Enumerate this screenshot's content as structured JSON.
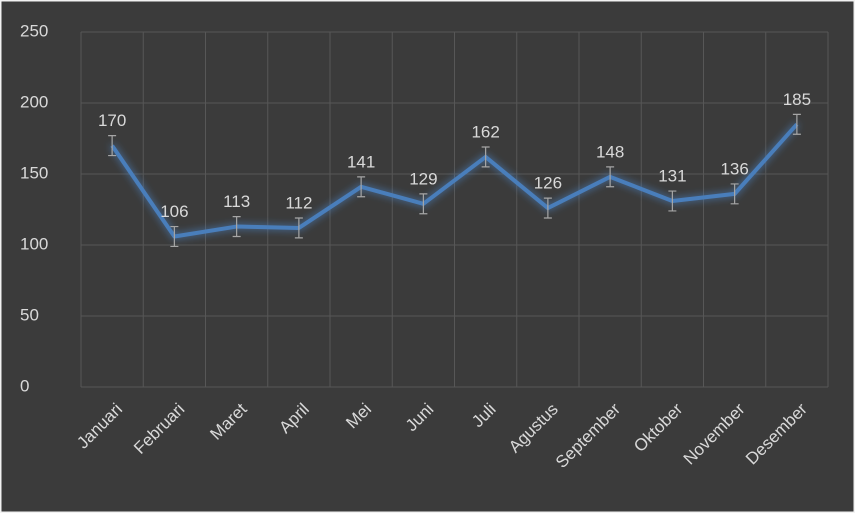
{
  "chart_data": {
    "type": "line",
    "categories": [
      "Januari",
      "Februari",
      "Maret",
      "April",
      "Mei",
      "Juni",
      "Juli",
      "Agustus",
      "September",
      "Oktober",
      "November",
      "Desember"
    ],
    "series": [
      {
        "color": "#4a7ebb",
        "values": [
          170,
          106,
          113,
          112,
          141,
          129,
          162,
          126,
          148,
          131,
          136,
          185
        ],
        "errors": [
          7,
          7,
          7,
          7,
          7,
          7,
          7,
          7,
          7,
          7,
          7,
          7
        ]
      }
    ],
    "ylim": [
      0,
      250
    ],
    "yticks": [
      0,
      50,
      100,
      150,
      200,
      250
    ],
    "grid": true
  }
}
